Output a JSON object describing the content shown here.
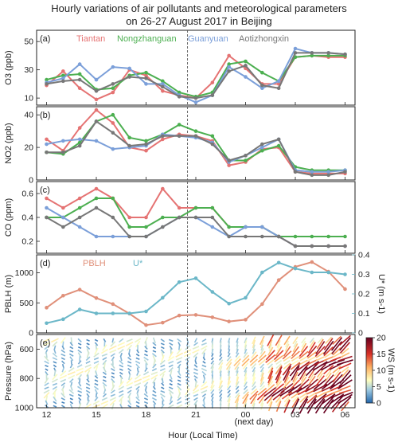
{
  "title_line1": "Hourly variations of air pollutants and meteorological parameters",
  "title_line2": "on 26-27 August 2017 in Beijing",
  "colors": {
    "Tiantan": "#e57373",
    "Nongzhanguan": "#4caf50",
    "Guanyuan": "#7b9fd9",
    "Aotizhongxin": "#777777",
    "PBLH": "#e0907a",
    "Ustar": "#6bb7c8"
  },
  "chart_data": {
    "type": "line",
    "x_hours": [
      12,
      13,
      14,
      15,
      16,
      17,
      18,
      19,
      20,
      21,
      22,
      23,
      24,
      25,
      26,
      27,
      28,
      29,
      30
    ],
    "x_ticks": [
      "12",
      "15",
      "18",
      "21",
      "00",
      "03",
      "06"
    ],
    "x_tick_positions": [
      12,
      15,
      18,
      21,
      24,
      27,
      30
    ],
    "x_sublabel": "(next day)",
    "xlabel": "Hour (Local Time)",
    "vline_x": 20.5,
    "panels": [
      {
        "label": "(a)",
        "ylabel": "O3 (ppb)",
        "ylim": [
          5,
          58
        ],
        "yticks": [
          "10",
          "30",
          "50"
        ],
        "ytick_values": [
          10,
          30,
          50
        ],
        "legend": [
          "Tiantan",
          "Nongzhanguan",
          "Guanyuan",
          "Aotizhongxin"
        ],
        "series": [
          {
            "name": "Tiantan",
            "values": [
              19,
              29,
              17,
              9,
              14,
              30,
              26,
              15,
              12,
              10,
              21,
              40,
              31,
              20,
              20,
              39,
              40,
              39,
              39
            ]
          },
          {
            "name": "Nongzhanguan",
            "values": [
              23,
              26,
              27,
              16,
              17,
              26,
              28,
              22,
              14,
              11,
              14,
              34,
              36,
              28,
              22,
              39,
              40,
              40,
              40
            ]
          },
          {
            "name": "Guanyuan",
            "values": [
              21,
              24,
              34,
              23,
              32,
              31,
              20,
              20,
              12,
              7,
              12,
              32,
              25,
              17,
              22,
              45,
              42,
              42,
              41
            ]
          },
          {
            "name": "Aotizhongxin",
            "values": [
              20,
              22,
              23,
              15,
              20,
              25,
              24,
              18,
              11,
              10,
              12,
              29,
              33,
              19,
              17,
              42,
              42,
              42,
              41
            ]
          }
        ]
      },
      {
        "label": "(b)",
        "ylabel": "NO2 (ppb)",
        "ylim": [
          0,
          45
        ],
        "yticks": [
          "0",
          "20",
          "40"
        ],
        "ytick_values": [
          0,
          20,
          40
        ],
        "series": [
          {
            "name": "Tiantan",
            "values": [
              25,
              18,
              32,
              43,
              35,
              20,
              18,
              25,
              28,
              27,
              24,
              9,
              11,
              19,
              20,
              5,
              4,
              4,
              4
            ]
          },
          {
            "name": "Nongzhanguan",
            "values": [
              17,
              16,
              23,
              36,
              40,
              26,
              24,
              28,
              34,
              30,
              27,
              12,
              12,
              18,
              21,
              8,
              6,
              6,
              6
            ]
          },
          {
            "name": "Guanyuan",
            "values": [
              22,
              24,
              25,
              24,
              19,
              20,
              21,
              28,
              27,
              26,
              23,
              11,
              15,
              20,
              25,
              6,
              5,
              5,
              6
            ]
          },
          {
            "name": "Aotizhongxin",
            "values": [
              17,
              17,
              21,
              36,
              29,
              21,
              22,
              27,
              27,
              27,
              22,
              12,
              15,
              22,
              25,
              5,
              3,
              3,
              5
            ]
          }
        ]
      },
      {
        "label": "(c)",
        "ylabel": "CO (ppm)",
        "ylim": [
          0.1,
          0.7
        ],
        "yticks": [
          "0.2",
          "0.4",
          "0.6"
        ],
        "ytick_values": [
          0.2,
          0.4,
          0.6
        ],
        "series": [
          {
            "name": "Tiantan",
            "values": [
              0.56,
              0.48,
              0.56,
              0.64,
              0.56,
              0.4,
              0.4,
              0.64,
              0.48,
              0.48,
              0.48,
              0.32,
              0.32,
              0.32,
              0.24,
              0.16,
              0.16,
              0.16,
              0.16
            ]
          },
          {
            "name": "Nongzhanguan",
            "values": [
              0.4,
              0.4,
              0.48,
              0.56,
              0.56,
              0.32,
              0.32,
              0.4,
              0.4,
              0.48,
              0.48,
              0.32,
              0.32,
              0.32,
              0.24,
              0.24,
              0.24,
              0.24,
              0.24
            ]
          },
          {
            "name": "Guanyuan",
            "values": [
              0.48,
              0.4,
              0.32,
              0.24,
              0.24,
              0.24,
              0.24,
              0.32,
              0.4,
              0.4,
              0.32,
              0.24,
              0.32,
              0.32,
              0.24,
              0.16,
              0.16,
              0.16,
              0.16
            ]
          },
          {
            "name": "Aotizhongxin",
            "values": [
              0.4,
              0.32,
              0.4,
              0.48,
              0.4,
              0.24,
              0.24,
              0.32,
              0.4,
              0.4,
              0.4,
              0.24,
              0.24,
              0.24,
              0.24,
              0.16,
              0.16,
              0.16,
              0.16
            ]
          }
        ]
      },
      {
        "label": "(d)",
        "ylabel": "PBLH (m)",
        "ylabel_right": "U* (m s-1)",
        "ylim": [
          0,
          1300
        ],
        "ylim_right": [
          0,
          0.4
        ],
        "yticks": [
          "0",
          "500",
          "1000"
        ],
        "ytick_values": [
          0,
          500,
          1000
        ],
        "yticks_right": [
          "0",
          "0.1",
          "0.2",
          "0.3",
          "0.4"
        ],
        "ytick_values_right": [
          0,
          0.1,
          0.2,
          0.3,
          0.4
        ],
        "legend": [
          "PBLH",
          "U*"
        ],
        "series": [
          {
            "name": "PBLH",
            "axis": "left",
            "values": [
              420,
              620,
              720,
              580,
              480,
              320,
              130,
              170,
              290,
              300,
              260,
              190,
              220,
              480,
              880,
              1100,
              1180,
              1020,
              730
            ]
          },
          {
            "name": "U*",
            "axis": "right",
            "values": [
              0.05,
              0.07,
              0.12,
              0.1,
              0.1,
              0.1,
              0.11,
              0.18,
              0.26,
              0.28,
              0.21,
              0.15,
              0.18,
              0.31,
              0.36,
              0.33,
              0.31,
              0.31,
              0.3
            ]
          }
        ]
      },
      {
        "label": "(e)",
        "type": "wind_profile",
        "ylabel": "Pressure (hPa)",
        "ylim": [
          1000,
          500
        ],
        "yticks": [
          "600",
          "800",
          "1000"
        ],
        "ytick_values": [
          600,
          800,
          1000
        ],
        "colorbar_label": "WS (m s-1)",
        "colorbar_ticks": [
          "0",
          "5",
          "10",
          "15",
          "20"
        ],
        "colorbar_tick_values": [
          0,
          5,
          10,
          15,
          20
        ]
      }
    ]
  }
}
